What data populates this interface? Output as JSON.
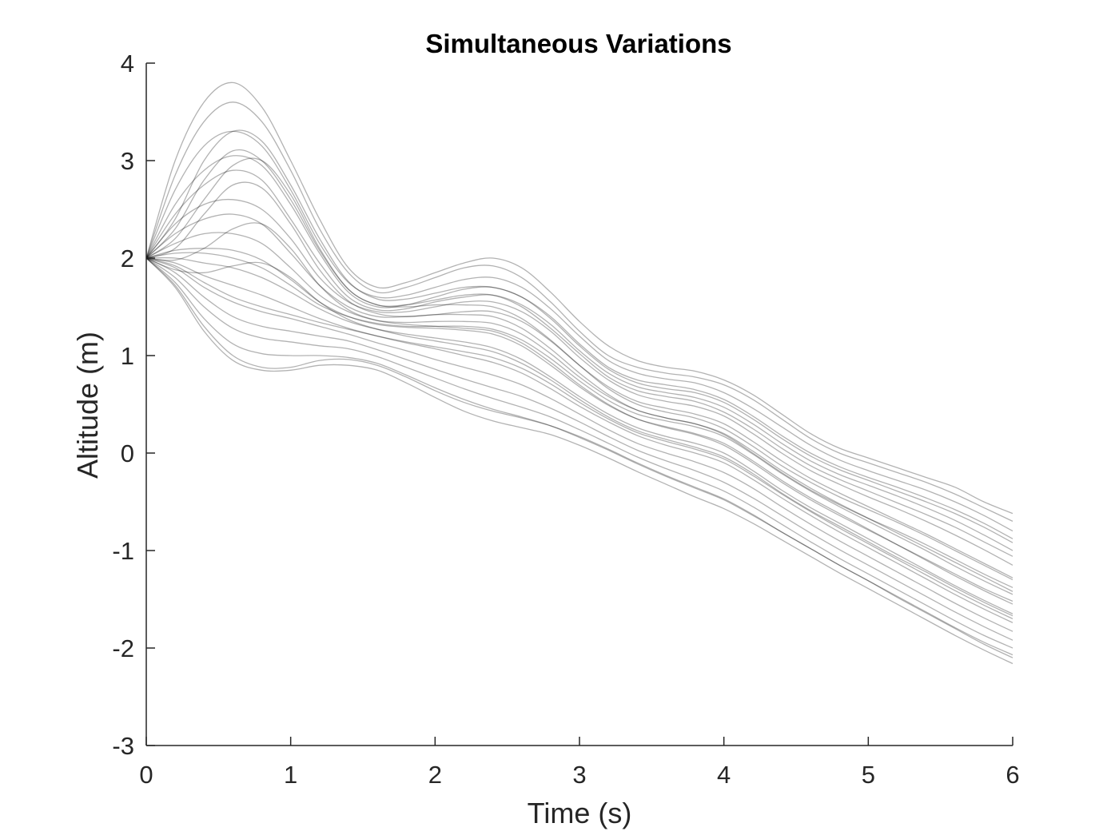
{
  "chart_data": {
    "type": "line",
    "title": "Simultaneous Variations",
    "xlabel": "Time (s)",
    "ylabel": "Altitude (m)",
    "xlim": [
      0,
      6
    ],
    "ylim": [
      -3,
      4
    ],
    "xticks": [
      0,
      1,
      2,
      3,
      4,
      5,
      6
    ],
    "yticks": [
      -3,
      -2,
      -1,
      0,
      1,
      2,
      3,
      4
    ],
    "grid": false,
    "legend": "none",
    "line_color": "#000000",
    "line_opacity": 0.3,
    "x": [
      0,
      0.2,
      0.4,
      0.6,
      0.8,
      1.0,
      1.2,
      1.4,
      1.6,
      1.8,
      2.0,
      2.2,
      2.4,
      2.6,
      2.8,
      3.0,
      3.2,
      3.4,
      3.6,
      3.8,
      4.0,
      4.2,
      4.4,
      4.6,
      4.8,
      5.0,
      5.2,
      5.4,
      5.6,
      5.8,
      6.0
    ],
    "series": [
      {
        "values": [
          2.0,
          3.0,
          3.6,
          3.8,
          3.55,
          3.0,
          2.4,
          1.9,
          1.7,
          1.75,
          1.85,
          1.95,
          2.0,
          1.9,
          1.65,
          1.35,
          1.1,
          0.95,
          0.88,
          0.84,
          0.75,
          0.6,
          0.4,
          0.2,
          0.05,
          -0.05,
          -0.15,
          -0.25,
          -0.35,
          -0.5,
          -0.62
        ]
      },
      {
        "values": [
          2.0,
          2.85,
          3.4,
          3.6,
          3.4,
          2.9,
          2.3,
          1.85,
          1.65,
          1.7,
          1.8,
          1.9,
          1.92,
          1.8,
          1.55,
          1.25,
          1.0,
          0.88,
          0.82,
          0.78,
          0.7,
          0.55,
          0.35,
          0.15,
          0.0,
          -0.1,
          -0.2,
          -0.3,
          -0.42,
          -0.56,
          -0.7
        ]
      },
      {
        "values": [
          2.0,
          2.7,
          3.15,
          3.3,
          3.15,
          2.7,
          2.15,
          1.75,
          1.6,
          1.62,
          1.7,
          1.78,
          1.8,
          1.7,
          1.48,
          1.2,
          0.95,
          0.82,
          0.76,
          0.72,
          0.62,
          0.46,
          0.27,
          0.08,
          -0.07,
          -0.18,
          -0.28,
          -0.38,
          -0.5,
          -0.64,
          -0.8
        ]
      },
      {
        "values": [
          2.0,
          2.55,
          2.9,
          3.05,
          2.95,
          2.55,
          2.05,
          1.65,
          1.5,
          1.52,
          1.6,
          1.68,
          1.7,
          1.6,
          1.4,
          1.12,
          0.88,
          0.75,
          0.7,
          0.65,
          0.55,
          0.38,
          0.18,
          0.0,
          -0.14,
          -0.25,
          -0.35,
          -0.46,
          -0.58,
          -0.72,
          -0.88
        ]
      },
      {
        "values": [
          2.0,
          2.45,
          2.75,
          2.9,
          2.8,
          2.4,
          1.95,
          1.6,
          1.47,
          1.48,
          1.55,
          1.6,
          1.62,
          1.52,
          1.32,
          1.05,
          0.82,
          0.68,
          0.62,
          0.57,
          0.47,
          0.3,
          0.1,
          -0.08,
          -0.22,
          -0.33,
          -0.44,
          -0.56,
          -0.69,
          -0.84,
          -1.0
        ]
      },
      {
        "values": [
          2.0,
          2.35,
          2.55,
          2.6,
          2.5,
          2.2,
          1.8,
          1.55,
          1.45,
          1.45,
          1.5,
          1.55,
          1.55,
          1.45,
          1.25,
          0.98,
          0.75,
          0.6,
          0.53,
          0.48,
          0.38,
          0.2,
          0.0,
          -0.18,
          -0.32,
          -0.45,
          -0.57,
          -0.7,
          -0.84,
          -0.99,
          -1.15
        ]
      },
      {
        "values": [
          2.0,
          2.25,
          2.4,
          2.45,
          2.35,
          2.05,
          1.72,
          1.5,
          1.4,
          1.4,
          1.42,
          1.45,
          1.45,
          1.35,
          1.15,
          0.9,
          0.68,
          0.53,
          0.46,
          0.4,
          0.3,
          0.12,
          -0.08,
          -0.26,
          -0.41,
          -0.55,
          -0.69,
          -0.83,
          -0.98,
          -1.13,
          -1.28
        ]
      },
      {
        "values": [
          2.0,
          2.15,
          2.25,
          2.25,
          2.15,
          1.9,
          1.62,
          1.45,
          1.36,
          1.34,
          1.35,
          1.35,
          1.33,
          1.22,
          1.02,
          0.78,
          0.58,
          0.44,
          0.36,
          0.3,
          0.2,
          0.02,
          -0.18,
          -0.36,
          -0.52,
          -0.67,
          -0.82,
          -0.97,
          -1.12,
          -1.27,
          -1.42
        ]
      },
      {
        "values": [
          2.0,
          2.08,
          2.1,
          2.08,
          1.98,
          1.78,
          1.55,
          1.4,
          1.32,
          1.29,
          1.28,
          1.26,
          1.22,
          1.1,
          0.9,
          0.68,
          0.49,
          0.35,
          0.27,
          0.2,
          0.1,
          -0.08,
          -0.28,
          -0.46,
          -0.62,
          -0.78,
          -0.94,
          -1.1,
          -1.26,
          -1.41,
          -1.55
        ]
      },
      {
        "values": [
          2.0,
          2.0,
          1.95,
          1.9,
          1.8,
          1.65,
          1.48,
          1.35,
          1.27,
          1.22,
          1.18,
          1.14,
          1.08,
          0.96,
          0.78,
          0.58,
          0.4,
          0.26,
          0.17,
          0.1,
          0.0,
          -0.18,
          -0.38,
          -0.56,
          -0.72,
          -0.88,
          -1.04,
          -1.2,
          -1.36,
          -1.51,
          -1.65
        ]
      },
      {
        "values": [
          2.0,
          1.95,
          1.82,
          1.72,
          1.62,
          1.5,
          1.38,
          1.28,
          1.2,
          1.13,
          1.07,
          1.0,
          0.93,
          0.82,
          0.66,
          0.48,
          0.32,
          0.18,
          0.08,
          0.0,
          -0.1,
          -0.27,
          -0.46,
          -0.64,
          -0.81,
          -0.97,
          -1.13,
          -1.29,
          -1.45,
          -1.6,
          -1.74
        ]
      },
      {
        "values": [
          2.0,
          1.9,
          1.7,
          1.55,
          1.45,
          1.38,
          1.3,
          1.22,
          1.13,
          1.05,
          0.96,
          0.88,
          0.8,
          0.7,
          0.56,
          0.4,
          0.24,
          0.1,
          0.0,
          -0.09,
          -0.2,
          -0.36,
          -0.55,
          -0.73,
          -0.9,
          -1.06,
          -1.22,
          -1.38,
          -1.54,
          -1.69,
          -1.83
        ]
      },
      {
        "values": [
          2.0,
          1.85,
          1.6,
          1.4,
          1.3,
          1.25,
          1.2,
          1.15,
          1.06,
          0.96,
          0.86,
          0.76,
          0.67,
          0.58,
          0.46,
          0.32,
          0.17,
          0.03,
          -0.08,
          -0.18,
          -0.3,
          -0.46,
          -0.64,
          -0.82,
          -0.99,
          -1.15,
          -1.31,
          -1.47,
          -1.63,
          -1.78,
          -1.92
        ]
      },
      {
        "values": [
          2.0,
          1.8,
          1.5,
          1.28,
          1.18,
          1.14,
          1.1,
          1.07,
          0.99,
          0.88,
          0.77,
          0.66,
          0.56,
          0.47,
          0.37,
          0.24,
          0.1,
          -0.04,
          -0.16,
          -0.27,
          -0.39,
          -0.55,
          -0.73,
          -0.91,
          -1.08,
          -1.24,
          -1.4,
          -1.56,
          -1.72,
          -1.87,
          -2.0
        ]
      },
      {
        "values": [
          2.0,
          1.75,
          1.38,
          1.12,
          1.02,
          1.0,
          1.0,
          0.98,
          0.92,
          0.8,
          0.67,
          0.55,
          0.45,
          0.37,
          0.28,
          0.16,
          0.03,
          -0.11,
          -0.24,
          -0.36,
          -0.48,
          -0.64,
          -0.81,
          -0.98,
          -1.15,
          -1.31,
          -1.47,
          -1.63,
          -1.79,
          -1.94,
          -2.07
        ]
      },
      {
        "values": [
          2.0,
          1.7,
          1.25,
          0.95,
          0.85,
          0.85,
          0.9,
          0.9,
          0.85,
          0.72,
          0.57,
          0.43,
          0.33,
          0.26,
          0.19,
          0.08,
          -0.05,
          -0.19,
          -0.32,
          -0.45,
          -0.57,
          -0.72,
          -0.89,
          -1.06,
          -1.23,
          -1.39,
          -1.55,
          -1.71,
          -1.87,
          -2.02,
          -2.16
        ]
      },
      {
        "values": [
          2.0,
          1.72,
          1.3,
          1.0,
          0.88,
          0.88,
          0.95,
          0.96,
          0.9,
          0.78,
          0.64,
          0.52,
          0.43,
          0.36,
          0.28,
          0.17,
          0.04,
          -0.1,
          -0.23,
          -0.35,
          -0.47,
          -0.63,
          -0.81,
          -0.98,
          -1.15,
          -1.31,
          -1.48,
          -1.64,
          -1.8,
          -1.96,
          -2.1
        ]
      },
      {
        "values": [
          2.0,
          2.2,
          2.6,
          2.95,
          3.0,
          2.65,
          2.1,
          1.68,
          1.52,
          1.5,
          1.52,
          1.52,
          1.5,
          1.38,
          1.16,
          0.9,
          0.66,
          0.5,
          0.42,
          0.36,
          0.25,
          0.07,
          -0.13,
          -0.3,
          -0.45,
          -0.58,
          -0.71,
          -0.85,
          -1.0,
          -1.15,
          -1.3
        ]
      },
      {
        "values": [
          2.0,
          2.1,
          2.45,
          2.75,
          2.72,
          2.35,
          1.88,
          1.56,
          1.43,
          1.4,
          1.42,
          1.42,
          1.4,
          1.28,
          1.07,
          0.82,
          0.6,
          0.44,
          0.36,
          0.3,
          0.19,
          0.0,
          -0.2,
          -0.38,
          -0.53,
          -0.67,
          -0.8,
          -0.94,
          -1.09,
          -1.24,
          -1.38
        ]
      },
      {
        "values": [
          2.0,
          1.98,
          2.1,
          2.3,
          2.35,
          2.1,
          1.72,
          1.47,
          1.36,
          1.32,
          1.3,
          1.28,
          1.25,
          1.13,
          0.93,
          0.7,
          0.5,
          0.35,
          0.26,
          0.19,
          0.08,
          -0.1,
          -0.3,
          -0.48,
          -0.64,
          -0.79,
          -0.94,
          -1.09,
          -1.24,
          -1.39,
          -1.52
        ]
      },
      {
        "values": [
          2.0,
          1.88,
          1.85,
          1.92,
          1.95,
          1.8,
          1.55,
          1.37,
          1.27,
          1.2,
          1.15,
          1.1,
          1.04,
          0.92,
          0.75,
          0.55,
          0.37,
          0.23,
          0.14,
          0.06,
          -0.04,
          -0.21,
          -0.41,
          -0.59,
          -0.75,
          -0.91,
          -1.07,
          -1.22,
          -1.38,
          -1.53,
          -1.67
        ]
      },
      {
        "values": [
          2.0,
          2.4,
          3.0,
          3.3,
          3.2,
          2.75,
          2.2,
          1.76,
          1.58,
          1.58,
          1.64,
          1.7,
          1.7,
          1.6,
          1.38,
          1.1,
          0.86,
          0.72,
          0.66,
          0.62,
          0.52,
          0.35,
          0.15,
          -0.03,
          -0.17,
          -0.28,
          -0.39,
          -0.5,
          -0.62,
          -0.76,
          -0.92
        ]
      },
      {
        "values": [
          2.0,
          2.3,
          2.8,
          3.1,
          3.0,
          2.6,
          2.08,
          1.68,
          1.52,
          1.52,
          1.57,
          1.62,
          1.62,
          1.5,
          1.28,
          1.02,
          0.78,
          0.64,
          0.58,
          0.53,
          0.42,
          0.25,
          0.05,
          -0.13,
          -0.27,
          -0.39,
          -0.51,
          -0.63,
          -0.76,
          -0.91,
          -1.06
        ]
      },
      {
        "values": [
          2.0,
          2.05,
          2.05,
          2.0,
          1.9,
          1.72,
          1.52,
          1.4,
          1.33,
          1.3,
          1.3,
          1.3,
          1.27,
          1.16,
          0.97,
          0.74,
          0.54,
          0.4,
          0.33,
          0.27,
          0.17,
          -0.01,
          -0.21,
          -0.39,
          -0.55,
          -0.7,
          -0.85,
          -1.0,
          -1.16,
          -1.31,
          -1.45
        ]
      },
      {
        "values": [
          2.0,
          1.92,
          1.75,
          1.6,
          1.5,
          1.42,
          1.34,
          1.27,
          1.2,
          1.14,
          1.09,
          1.04,
          0.98,
          0.87,
          0.71,
          0.52,
          0.35,
          0.21,
          0.12,
          0.04,
          -0.06,
          -0.23,
          -0.42,
          -0.6,
          -0.77,
          -0.93,
          -1.09,
          -1.25,
          -1.41,
          -1.56,
          -1.7
        ]
      }
    ]
  }
}
